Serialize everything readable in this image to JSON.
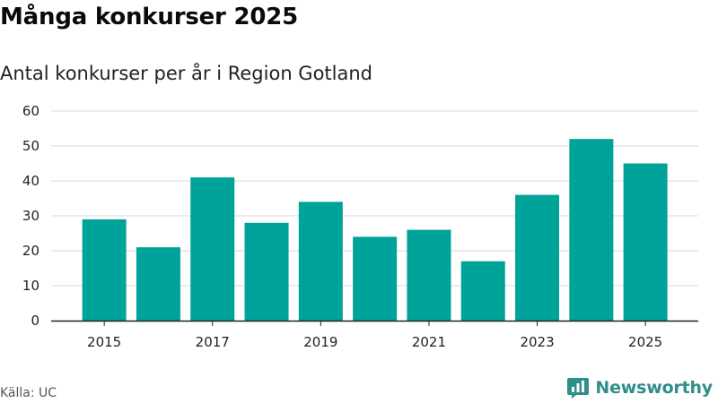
{
  "title": "Många konkurser 2025",
  "subtitle": "Antal konkurser per år i Region Gotland",
  "source": "Källa: UC",
  "brand": {
    "name": "Newsworthy",
    "icon": "newsworthy-logo-icon",
    "color": "#2f8f8a"
  },
  "colors": {
    "bar": "#00a39a",
    "grid": "#d9d9d9",
    "axis": "#222222"
  },
  "chart_data": {
    "type": "bar",
    "categories": [
      "2015",
      "2016",
      "2017",
      "2018",
      "2019",
      "2020",
      "2021",
      "2022",
      "2023",
      "2024",
      "2025"
    ],
    "values": [
      29,
      21,
      41,
      28,
      34,
      24,
      26,
      17,
      36,
      52,
      45
    ],
    "x_tick_labels": [
      "2015",
      "2017",
      "2019",
      "2021",
      "2023",
      "2025"
    ],
    "y_ticks": [
      0,
      10,
      20,
      30,
      40,
      50,
      60
    ],
    "ylim": [
      0,
      60
    ],
    "xlabel": "",
    "ylabel": "",
    "grid": true,
    "legend": "none"
  }
}
